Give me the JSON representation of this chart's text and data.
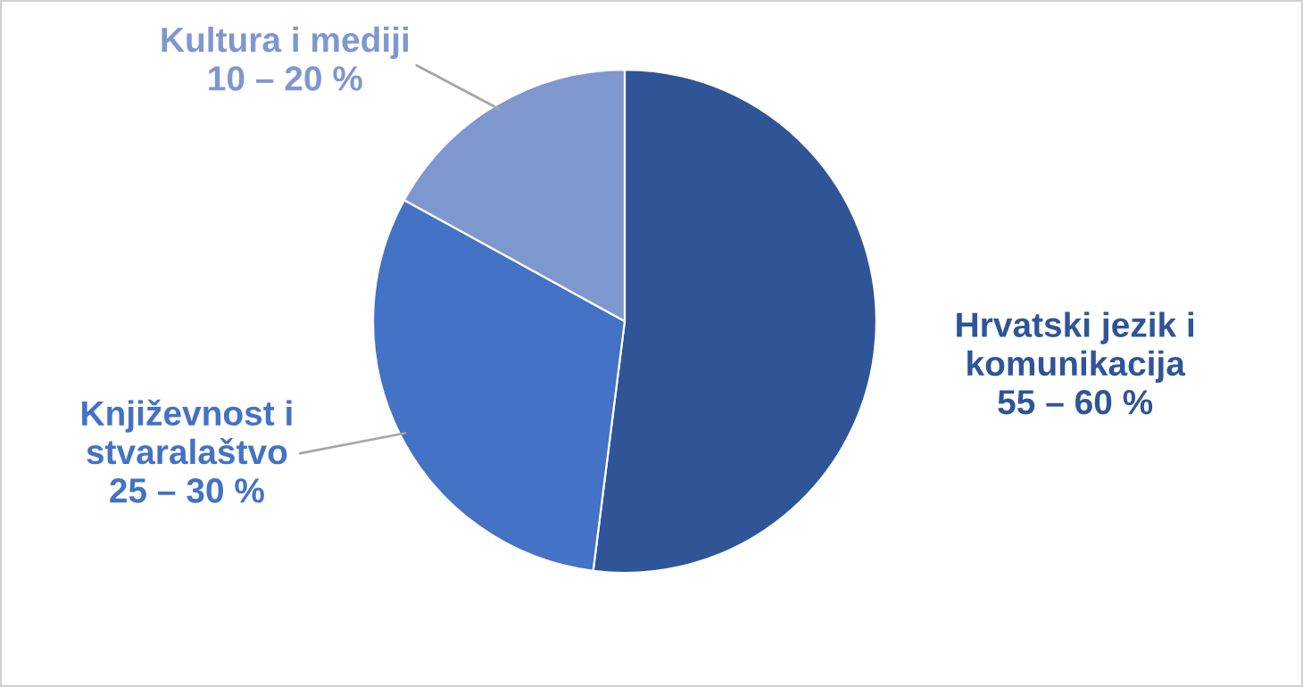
{
  "chart_data": {
    "type": "pie",
    "categories": [
      "Hrvatski jezik i\nkomunikacija\n55 – 60 %",
      "Književnost i\nstvaralaštvo\n25 – 30 %",
      "Kultura i mediji\n10 – 20 %"
    ],
    "values": [
      52,
      31,
      17
    ],
    "colors": [
      "#2f5597",
      "#4472c4",
      "#7f97cf"
    ]
  }
}
